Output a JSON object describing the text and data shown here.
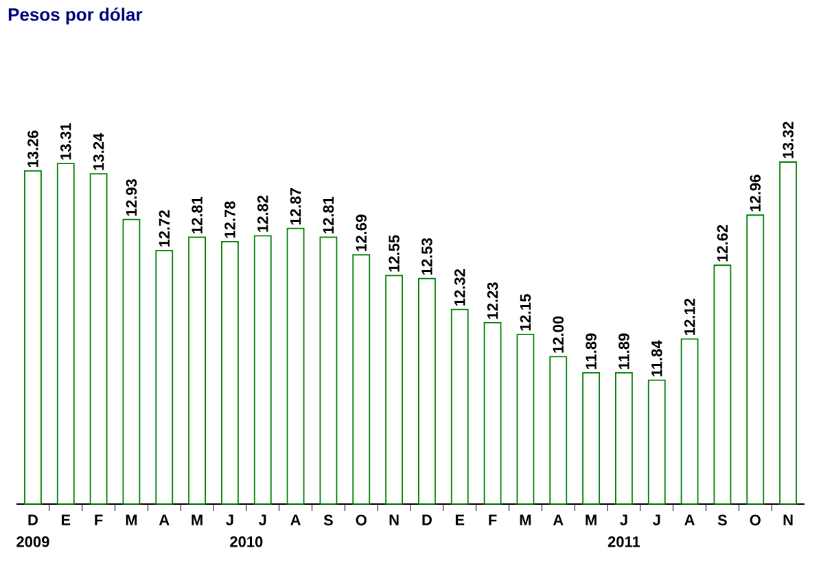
{
  "chart_data": {
    "type": "bar",
    "title": "Pesos por dólar",
    "categories": [
      "D",
      "E",
      "F",
      "M",
      "A",
      "M",
      "J",
      "J",
      "A",
      "S",
      "O",
      "N",
      "D",
      "E",
      "F",
      "M",
      "A",
      "M",
      "J",
      "J",
      "A",
      "S",
      "O",
      "N"
    ],
    "values": [
      13.26,
      13.31,
      13.24,
      12.93,
      12.72,
      12.81,
      12.78,
      12.82,
      12.87,
      12.81,
      12.69,
      12.55,
      12.53,
      12.32,
      12.23,
      12.15,
      12.0,
      11.89,
      11.89,
      11.84,
      12.12,
      12.62,
      12.96,
      13.32
    ],
    "color": "#008000",
    "value_labels": [
      "13.26",
      "13.31",
      "13.24",
      "12.93",
      "12.72",
      "12.81",
      "12.78",
      "12.82",
      "12.87",
      "12.81",
      "12.69",
      "12.55",
      "12.53",
      "12.32",
      "12.23",
      "12.15",
      "12.00",
      "11.89",
      "11.89",
      "11.84",
      "12.12",
      "12.62",
      "12.96",
      "13.32"
    ],
    "ylim": [
      11.0,
      13.32
    ],
    "tick_labels": "x",
    "annotations": [
      "2009",
      "2010",
      "2011"
    ]
  }
}
